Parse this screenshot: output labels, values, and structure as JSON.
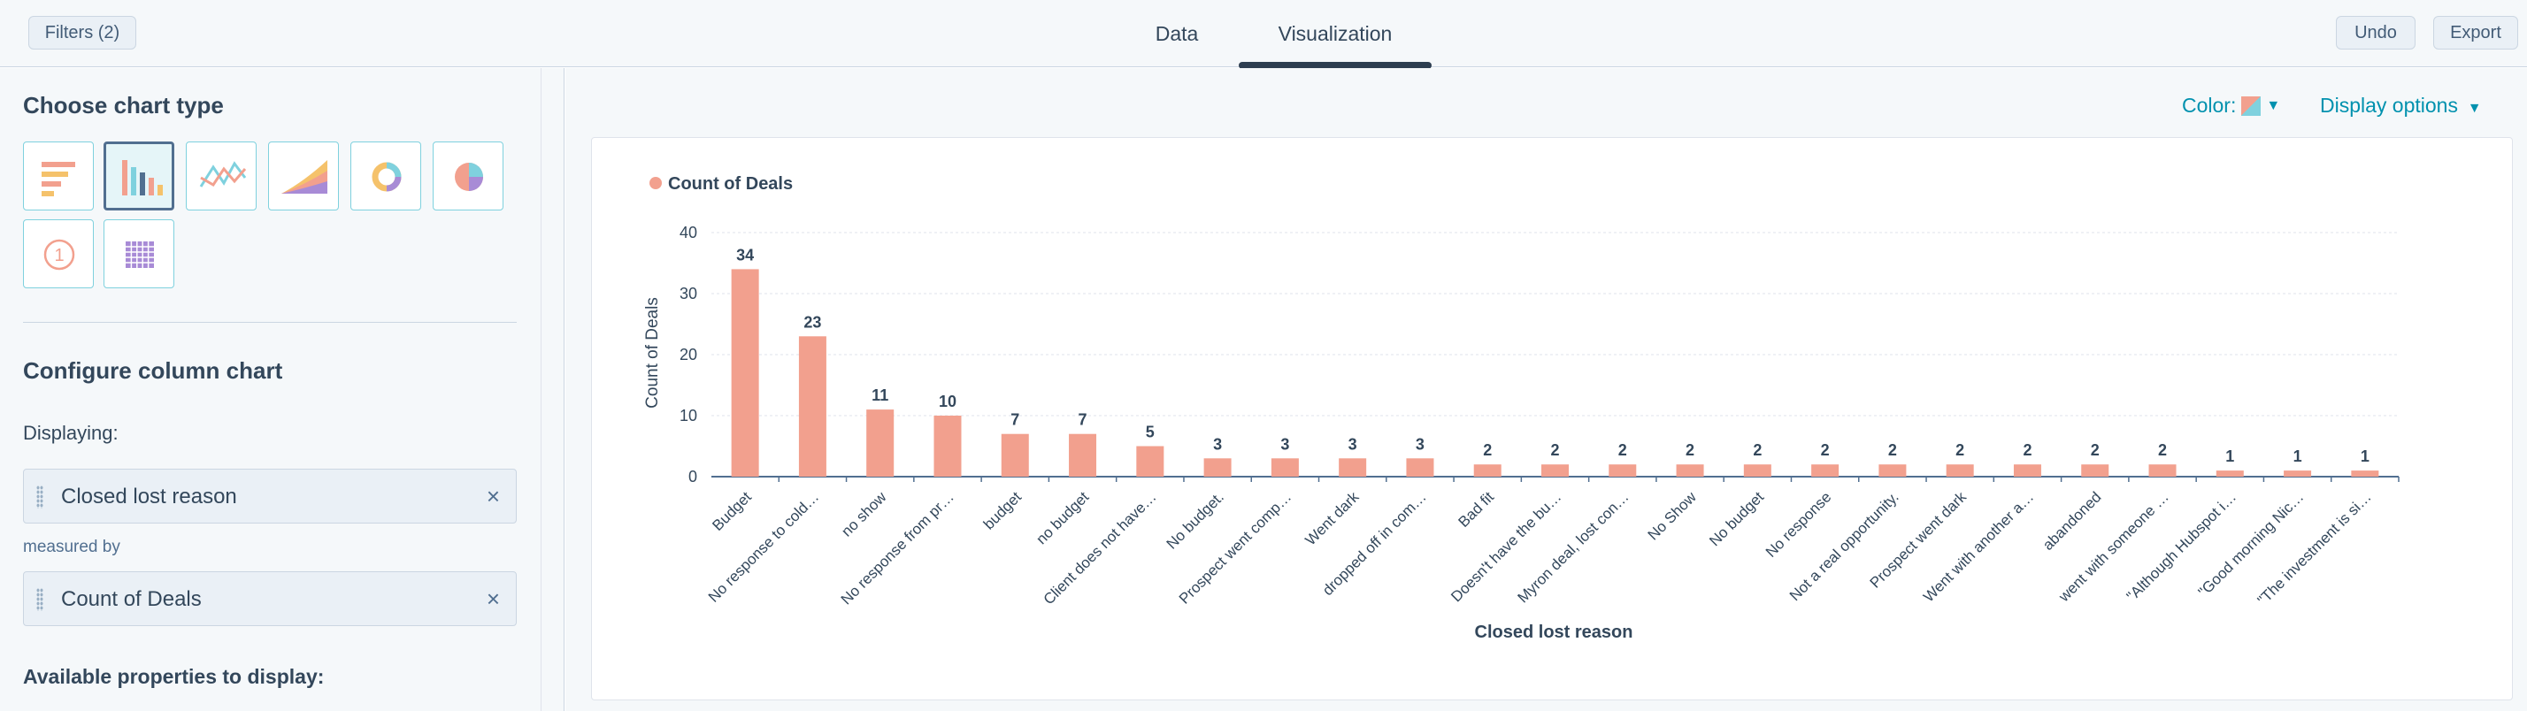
{
  "toolbar": {
    "filters_label": "Filters (2)",
    "undo_label": "Undo",
    "export_label": "Export"
  },
  "tabs": [
    {
      "label": "Data"
    },
    {
      "label": "Visualization"
    }
  ],
  "left_panel": {
    "choose_chart_type": "Choose chart type",
    "chart_types": [
      "horizontal-bar",
      "column",
      "line",
      "area",
      "donut",
      "pie",
      "kpi",
      "table"
    ],
    "selected_chart_type": "column",
    "configure_title": "Configure column chart",
    "displaying_label": "Displaying:",
    "displaying_value": "Closed lost reason",
    "measured_by_label": "measured by",
    "measured_value": "Count of Deals",
    "available_label": "Available properties to display:",
    "remove_symbol": "×"
  },
  "controls": {
    "color_label": "Color:",
    "display_options_label": "Display options"
  },
  "colors": {
    "bar": "#f2a08e",
    "accent": "#0091ae",
    "axis": "#516f90",
    "text": "#33475b"
  },
  "chart_data": {
    "type": "bar",
    "legend": [
      "Count of Deals"
    ],
    "legend_position": "top-left",
    "xlabel": "Closed lost reason",
    "ylabel": "Count of Deals",
    "ylim": [
      0,
      40
    ],
    "yticks": [
      0,
      10,
      20,
      30,
      40
    ],
    "grid": true,
    "categories": [
      "Budget",
      "No response to cold…",
      "no show",
      "No response from pr…",
      "budget",
      "no budget",
      "Client does not have…",
      "No budget.",
      "Prospect went comp…",
      "Went dark",
      "dropped off in com…",
      "Bad fit",
      "Doesn't have the bu…",
      "Myron deal, lost con…",
      "No Show",
      "No budget",
      "No response",
      "Not a real opportunity.",
      "Prospect went dark",
      "Went with another a…",
      "abandoned",
      "went with someone …",
      "\"Although Hubspot i…",
      "\"Good morning Nic…",
      "\"The investment is si…"
    ],
    "series": [
      {
        "name": "Count of Deals",
        "values": [
          34,
          23,
          11,
          10,
          7,
          7,
          5,
          3,
          3,
          3,
          3,
          2,
          2,
          2,
          2,
          2,
          2,
          2,
          2,
          2,
          2,
          2,
          1,
          1,
          1
        ]
      }
    ]
  }
}
